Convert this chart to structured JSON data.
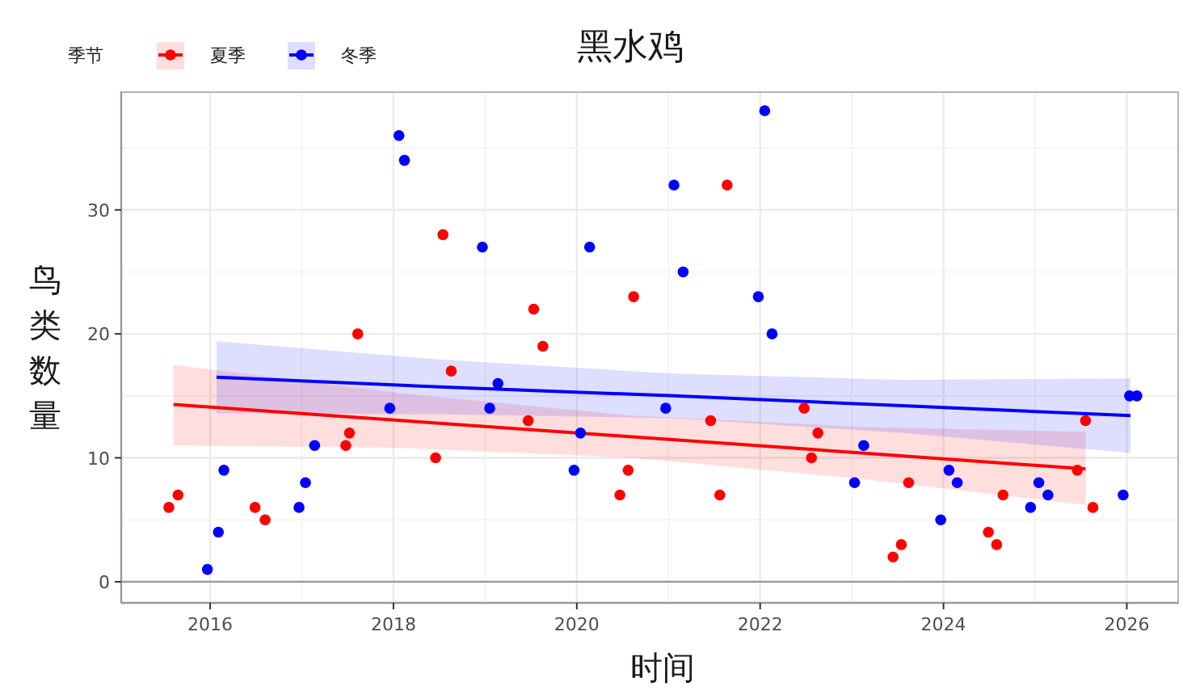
{
  "chart_data": {
    "type": "scatter",
    "title": "黑水鸡",
    "xlabel": "时间",
    "ylabel": "鸟类数量",
    "legend_title": "季节",
    "xlim": [
      2015.03,
      2026.56
    ],
    "ylim": [
      -1.7,
      39.5
    ],
    "xticks": [
      2016,
      2018,
      2020,
      2022,
      2024,
      2026
    ],
    "yticks": [
      0,
      10,
      20,
      30
    ],
    "grid": true,
    "legend": "top left",
    "ref_lines": [
      {
        "axis": "y",
        "value": 0,
        "color": "#999999"
      }
    ],
    "series": [
      {
        "name": "夏季",
        "type": "scatter",
        "marker": "circle",
        "color": "#ff0000",
        "x": [
          2015.55,
          2015.65,
          2016.49,
          2016.6,
          2017.48,
          2017.52,
          2017.61,
          2018.46,
          2018.54,
          2018.63,
          2019.47,
          2019.53,
          2019.63,
          2020.47,
          2020.56,
          2020.62,
          2021.46,
          2021.56,
          2021.64,
          2022.48,
          2022.56,
          2022.63,
          2023.45,
          2023.54,
          2023.62,
          2024.49,
          2024.58,
          2024.65,
          2025.46,
          2025.55,
          2025.63
        ],
        "values": [
          6,
          7,
          6,
          5,
          11,
          12,
          20,
          10,
          28,
          17,
          13,
          22,
          19,
          7,
          9,
          23,
          13,
          7,
          32,
          14,
          10,
          12,
          2,
          3,
          8,
          4,
          3,
          7,
          9,
          13,
          6
        ]
      },
      {
        "name": "冬季",
        "type": "scatter",
        "marker": "circle",
        "color": "#0000ff",
        "x": [
          2015.97,
          2016.09,
          2016.15,
          2016.97,
          2017.04,
          2017.14,
          2017.96,
          2018.06,
          2018.12,
          2018.97,
          2019.05,
          2019.14,
          2019.97,
          2020.04,
          2020.14,
          2020.97,
          2021.06,
          2021.16,
          2021.98,
          2022.05,
          2022.13,
          2023.03,
          2023.13,
          2023.97,
          2024.06,
          2024.15,
          2024.95,
          2025.04,
          2025.14,
          2025.96,
          2026.03,
          2026.11
        ],
        "values": [
          1,
          4,
          9,
          6,
          8,
          11,
          14,
          36,
          34,
          27,
          14,
          16,
          9,
          12,
          27,
          14,
          32,
          25,
          23,
          38,
          20,
          8,
          11,
          5,
          9,
          8,
          6,
          8,
          7,
          7,
          15,
          15
        ]
      },
      {
        "type": "line",
        "marker": "none",
        "color": "#ff0000",
        "x": [
          2015.6,
          2018.1,
          2020.6,
          2023.1,
          2025.55
        ],
        "values": [
          14.3,
          13.0,
          11.7,
          10.4,
          9.1
        ],
        "lower": [
          11.0,
          10.8,
          10.0,
          8.3,
          6.2
        ],
        "upper": [
          17.5,
          15.2,
          13.4,
          12.5,
          12.1
        ]
      },
      {
        "type": "line",
        "marker": "none",
        "color": "#0000ff",
        "x": [
          2016.07,
          2018.56,
          2021.06,
          2023.55,
          2026.04
        ],
        "values": [
          16.5,
          15.7,
          15.0,
          14.2,
          13.4
        ],
        "lower": [
          13.6,
          13.5,
          13.2,
          12.0,
          10.4
        ],
        "upper": [
          19.4,
          17.9,
          16.8,
          16.3,
          16.4
        ]
      }
    ]
  }
}
